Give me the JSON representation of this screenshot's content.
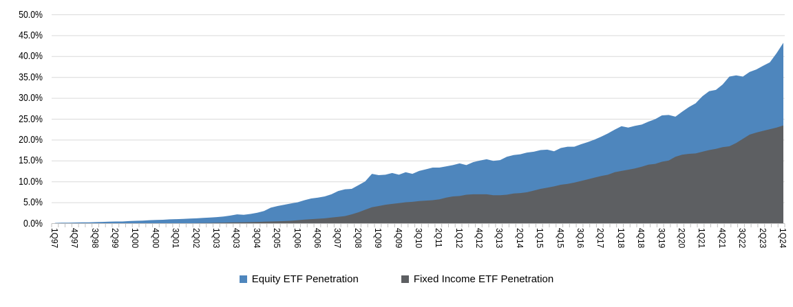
{
  "chart_data": {
    "type": "area",
    "series_mode": "overlapping",
    "title": "",
    "xlabel": "",
    "ylabel": "",
    "ylim": [
      0,
      50
    ],
    "y_tick_step": 5,
    "grid": "horizontal",
    "legend_position": "bottom-center",
    "y_tick_labels": [
      "0.0%",
      "5.0%",
      "10.0%",
      "15.0%",
      "20.0%",
      "25.0%",
      "30.0%",
      "35.0%",
      "40.0%",
      "45.0%",
      "50.0%"
    ],
    "x_tick_step": 3,
    "x_tick_labels": [
      "1Q97",
      "4Q97",
      "3Q98",
      "2Q99",
      "1Q00",
      "4Q00",
      "3Q01",
      "2Q02",
      "1Q03",
      "4Q03",
      "3Q04",
      "2Q05",
      "1Q06",
      "4Q06",
      "3Q07",
      "2Q08",
      "1Q09",
      "4Q09",
      "3Q10",
      "2Q11",
      "1Q12",
      "4Q12",
      "3Q13",
      "2Q14",
      "1Q15",
      "4Q15",
      "3Q16",
      "2Q17",
      "1Q18",
      "4Q18",
      "3Q19",
      "2Q20",
      "1Q21",
      "4Q21",
      "3Q22",
      "2Q23",
      "1Q24"
    ],
    "categories": [
      "1Q97",
      "2Q97",
      "3Q97",
      "4Q97",
      "1Q98",
      "2Q98",
      "3Q98",
      "4Q98",
      "1Q99",
      "2Q99",
      "3Q99",
      "4Q99",
      "1Q00",
      "2Q00",
      "3Q00",
      "4Q00",
      "1Q01",
      "2Q01",
      "3Q01",
      "4Q01",
      "1Q02",
      "2Q02",
      "3Q02",
      "4Q02",
      "1Q03",
      "2Q03",
      "3Q03",
      "4Q03",
      "1Q04",
      "2Q04",
      "3Q04",
      "4Q04",
      "1Q05",
      "2Q05",
      "3Q05",
      "4Q05",
      "1Q06",
      "2Q06",
      "3Q06",
      "4Q06",
      "1Q07",
      "2Q07",
      "3Q07",
      "4Q07",
      "1Q08",
      "2Q08",
      "3Q08",
      "4Q08",
      "1Q09",
      "2Q09",
      "3Q09",
      "4Q09",
      "1Q10",
      "2Q10",
      "3Q10",
      "4Q10",
      "1Q11",
      "2Q11",
      "3Q11",
      "4Q11",
      "1Q12",
      "2Q12",
      "3Q12",
      "4Q12",
      "1Q13",
      "2Q13",
      "3Q13",
      "4Q13",
      "1Q14",
      "2Q14",
      "3Q14",
      "4Q14",
      "1Q15",
      "2Q15",
      "3Q15",
      "4Q15",
      "1Q16",
      "2Q16",
      "3Q16",
      "4Q16",
      "1Q17",
      "2Q17",
      "3Q17",
      "4Q17",
      "1Q18",
      "2Q18",
      "3Q18",
      "4Q18",
      "1Q19",
      "2Q19",
      "3Q19",
      "4Q19",
      "1Q20",
      "2Q20",
      "3Q20",
      "4Q20",
      "1Q21",
      "2Q21",
      "3Q21",
      "4Q21",
      "1Q22",
      "2Q22",
      "3Q22",
      "4Q22",
      "1Q23",
      "2Q23",
      "3Q23",
      "4Q23",
      "1Q24"
    ],
    "series": [
      {
        "name": "Equity ETF Penetration",
        "color": "#4E86BD",
        "values": [
          0.15,
          0.2,
          0.2,
          0.25,
          0.3,
          0.3,
          0.35,
          0.4,
          0.45,
          0.5,
          0.5,
          0.6,
          0.65,
          0.7,
          0.8,
          0.85,
          0.9,
          1.0,
          1.05,
          1.1,
          1.2,
          1.25,
          1.35,
          1.45,
          1.55,
          1.7,
          1.9,
          2.2,
          2.1,
          2.3,
          2.6,
          3.0,
          3.8,
          4.2,
          4.5,
          4.8,
          5.1,
          5.6,
          6.0,
          6.2,
          6.5,
          7.0,
          7.8,
          8.2,
          8.3,
          9.2,
          10.1,
          11.9,
          11.6,
          11.7,
          12.1,
          11.7,
          12.3,
          11.9,
          12.6,
          13.0,
          13.4,
          13.4,
          13.7,
          14.0,
          14.4,
          14.0,
          14.7,
          15.1,
          15.4,
          15.0,
          15.2,
          16.0,
          16.4,
          16.6,
          17.0,
          17.2,
          17.6,
          17.7,
          17.3,
          18.1,
          18.4,
          18.4,
          19.0,
          19.5,
          20.1,
          20.8,
          21.6,
          22.5,
          23.3,
          23.0,
          23.4,
          23.7,
          24.4,
          25.0,
          25.9,
          26.0,
          25.6,
          26.8,
          27.9,
          28.8,
          30.5,
          31.7,
          32.0,
          33.3,
          35.2,
          35.5,
          35.2,
          36.3,
          36.9,
          37.8,
          38.6,
          40.8,
          43.3
        ]
      },
      {
        "name": "Fixed Income ETF Penetration",
        "color": "#5D5F62",
        "values": [
          0,
          0,
          0,
          0,
          0,
          0,
          0,
          0,
          0,
          0,
          0,
          0,
          0,
          0,
          0,
          0,
          0,
          0,
          0,
          0,
          0.05,
          0.1,
          0.12,
          0.15,
          0.18,
          0.22,
          0.26,
          0.3,
          0.32,
          0.35,
          0.4,
          0.45,
          0.5,
          0.55,
          0.6,
          0.65,
          0.8,
          0.95,
          1.05,
          1.15,
          1.25,
          1.45,
          1.6,
          1.8,
          2.2,
          2.7,
          3.3,
          3.9,
          4.2,
          4.5,
          4.7,
          4.9,
          5.1,
          5.2,
          5.4,
          5.5,
          5.6,
          5.8,
          6.2,
          6.5,
          6.6,
          6.9,
          7.0,
          7.0,
          7.0,
          6.8,
          6.8,
          6.9,
          7.2,
          7.3,
          7.5,
          7.9,
          8.3,
          8.6,
          8.9,
          9.3,
          9.5,
          9.8,
          10.2,
          10.6,
          11.0,
          11.4,
          11.7,
          12.3,
          12.6,
          12.9,
          13.2,
          13.6,
          14.1,
          14.3,
          14.8,
          15.1,
          16.0,
          16.5,
          16.7,
          16.8,
          17.2,
          17.6,
          17.9,
          18.3,
          18.5,
          19.3,
          20.3,
          21.3,
          21.8,
          22.2,
          22.6,
          23.0,
          23.5
        ]
      }
    ]
  },
  "legend": {
    "items": [
      {
        "label": "Equity ETF Penetration",
        "color": "#4E86BD"
      },
      {
        "label": "Fixed Income ETF Penetration",
        "color": "#5D5F62"
      }
    ]
  },
  "colors": {
    "background": "#FFFFFF",
    "gridline": "#D9D9D9",
    "axis_line": "#BFBFBF",
    "tick_mark": "#BFBFBF",
    "text": "#000000"
  }
}
